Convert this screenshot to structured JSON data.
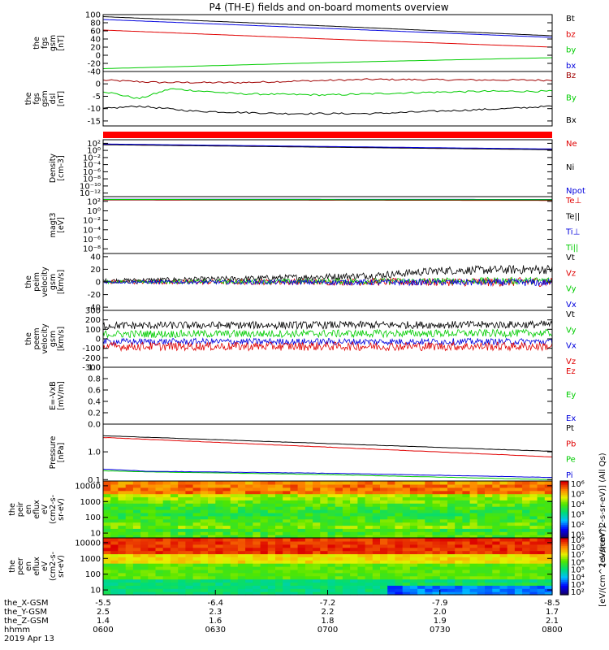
{
  "title": "P4 (TH-E) fields and on-board moments overview",
  "colors": {
    "black": "#000000",
    "red": "#e00000",
    "green": "#00cc00",
    "blue": "#0000dd"
  },
  "chart_data": [
    {
      "type": "line",
      "ylabel": [
        "the",
        "fgs",
        "gsm",
        "[nT]"
      ],
      "ylim": [
        -40,
        100
      ],
      "yticks": [
        {
          "v": 100,
          "label": "100"
        },
        {
          "v": 80,
          "label": "80"
        },
        {
          "v": 60,
          "label": "60"
        },
        {
          "v": 40,
          "label": "40"
        },
        {
          "v": 20,
          "label": "20"
        },
        {
          "v": 0,
          "label": "0"
        },
        {
          "v": -20,
          "label": "-20"
        },
        {
          "v": -40,
          "label": "-40"
        }
      ],
      "series": [
        {
          "name": "Bt",
          "color": "#000000",
          "x": [
            0,
            0.5,
            1
          ],
          "y": [
            95,
            72,
            48
          ]
        },
        {
          "name": "bz",
          "color": "#e00000",
          "x": [
            0,
            0.5,
            1
          ],
          "y": [
            62,
            40,
            20
          ]
        },
        {
          "name": "by",
          "color": "#00cc00",
          "x": [
            0,
            0.5,
            1
          ],
          "y": [
            -33,
            -18,
            -6
          ]
        },
        {
          "name": "bx",
          "color": "#0000dd",
          "x": [
            0,
            0.5,
            1
          ],
          "y": [
            88,
            66,
            44
          ]
        }
      ]
    },
    {
      "type": "line",
      "ylabel": [
        "the",
        "fgs",
        "gsm",
        "dsl",
        "[nT]"
      ],
      "ylim": [
        -17,
        5
      ],
      "yticks": [
        {
          "v": 0,
          "label": "0"
        },
        {
          "v": -5,
          "label": "-5"
        },
        {
          "v": -10,
          "label": "-10"
        },
        {
          "v": -15,
          "label": "-15"
        }
      ],
      "series": [
        {
          "name": "Bz",
          "color": "#a00000",
          "x": [
            0,
            0.12,
            0.3,
            0.45,
            0.6,
            0.8,
            1
          ],
          "y": [
            1.5,
            0.6,
            0.5,
            1.2,
            1.8,
            1.6,
            1.5
          ]
        },
        {
          "name": "By",
          "color": "#00cc00",
          "x": [
            0,
            0.08,
            0.15,
            0.3,
            0.5,
            0.7,
            0.85,
            1
          ],
          "y": [
            -3,
            -6,
            -2,
            -4,
            -4.5,
            -3.5,
            -3,
            -3
          ]
        },
        {
          "name": "Bx",
          "color": "#000000",
          "x": [
            0,
            0.08,
            0.2,
            0.4,
            0.6,
            0.75,
            0.9,
            1
          ],
          "y": [
            -10,
            -9,
            -11,
            -12,
            -12,
            -11,
            -10,
            -9
          ]
        }
      ]
    },
    {
      "type": "bar",
      "ylabel": [],
      "series": [
        {
          "name": "mode",
          "color": "#ff0000"
        }
      ]
    },
    {
      "type": "line",
      "ylabel": [
        "Density",
        "[cm-3]"
      ],
      "ylim": [
        -13,
        3
      ],
      "yscale": "log",
      "yticks": [
        {
          "v": 2,
          "label": "10²"
        },
        {
          "v": 0,
          "label": "10⁰"
        },
        {
          "v": -2,
          "label": "10⁻²"
        },
        {
          "v": -4,
          "label": "10⁻⁴"
        },
        {
          "v": -6,
          "label": "10⁻⁶"
        },
        {
          "v": -8,
          "label": "10⁻⁸"
        },
        {
          "v": -10,
          "label": "10⁻¹⁰"
        },
        {
          "v": -12,
          "label": "10⁻¹²"
        }
      ],
      "series": [
        {
          "name": "Ne",
          "color": "#e00000",
          "x": [
            0,
            1
          ],
          "y": [
            1.7,
            0.3
          ]
        },
        {
          "name": "Ni",
          "color": "#000000",
          "x": [
            0,
            1
          ],
          "y": [
            1.6,
            0.2
          ]
        },
        {
          "name": "Npot",
          "color": "#0000dd",
          "x": [
            0,
            1
          ],
          "y": [
            1.8,
            0.4
          ]
        }
      ]
    },
    {
      "type": "line",
      "ylabel": [
        "magt3",
        "[eV]"
      ],
      "ylim": [
        -9,
        3
      ],
      "yscale": "log",
      "yticks": [
        {
          "v": 2,
          "label": "10²"
        },
        {
          "v": 0,
          "label": "10⁰"
        },
        {
          "v": -2,
          "label": "10⁻²"
        },
        {
          "v": -4,
          "label": "10⁻⁴"
        },
        {
          "v": -6,
          "label": "10⁻⁶"
        },
        {
          "v": -8,
          "label": "10⁻⁸"
        }
      ],
      "series": [
        {
          "name": "Te⊥",
          "color": "#e00000",
          "x": [
            0,
            1
          ],
          "y": [
            2.3,
            2.2
          ]
        },
        {
          "name": "Te||",
          "color": "#000000",
          "x": [
            0,
            1
          ],
          "y": [
            2.35,
            2.3
          ]
        },
        {
          "name": "Ti⊥",
          "color": "#0000dd",
          "x": [
            0,
            1
          ],
          "y": [
            2.45,
            2.4
          ]
        },
        {
          "name": "Ti||",
          "color": "#00cc00",
          "x": [
            0,
            1
          ],
          "y": [
            2.4,
            2.35
          ]
        }
      ]
    },
    {
      "type": "line",
      "ylabel": [
        "the",
        "peim",
        "velocity",
        "gsm",
        "[km/s]"
      ],
      "ylim": [
        -45,
        45
      ],
      "yticks": [
        {
          "v": 40,
          "label": "40"
        },
        {
          "v": 20,
          "label": "20"
        },
        {
          "v": 0,
          "label": "0"
        },
        {
          "v": -20,
          "label": "-20"
        },
        {
          "v": -40,
          "label": "-40"
        }
      ],
      "series": [
        {
          "name": "Vt",
          "color": "#000000",
          "x": [
            0,
            0.3,
            0.6,
            0.75,
            1
          ],
          "y": [
            2,
            5,
            10,
            18,
            20
          ],
          "noise": 5
        },
        {
          "name": "Vz",
          "color": "#e00000",
          "x": [
            0,
            1
          ],
          "y": [
            0,
            0
          ],
          "noise": 5
        },
        {
          "name": "Vy",
          "color": "#00cc00",
          "x": [
            0,
            1
          ],
          "y": [
            0,
            2
          ],
          "noise": 4
        },
        {
          "name": "Vx",
          "color": "#0000dd",
          "x": [
            0,
            1
          ],
          "y": [
            0,
            -1
          ],
          "noise": 4
        }
      ]
    },
    {
      "type": "line",
      "ylabel": [
        "the",
        "peem",
        "velocity",
        "gsm",
        "[km/s]"
      ],
      "ylim": [
        -300,
        300
      ],
      "yticks": [
        {
          "v": 300,
          "label": "300"
        },
        {
          "v": 200,
          "label": "200"
        },
        {
          "v": 100,
          "label": "100"
        },
        {
          "v": 0,
          "label": "0"
        },
        {
          "v": -100,
          "label": "-100"
        },
        {
          "v": -200,
          "label": "-200"
        },
        {
          "v": -300,
          "label": "-300"
        }
      ],
      "series": [
        {
          "name": "Vt",
          "color": "#000000",
          "x": [
            0,
            1
          ],
          "y": [
            140,
            150
          ],
          "noise": 40
        },
        {
          "name": "Vy",
          "color": "#00cc00",
          "x": [
            0,
            1
          ],
          "y": [
            50,
            60
          ],
          "noise": 40
        },
        {
          "name": "Vx",
          "color": "#0000dd",
          "x": [
            0,
            1
          ],
          "y": [
            -30,
            -30
          ],
          "noise": 35
        },
        {
          "name": "Vz",
          "color": "#e00000",
          "x": [
            0,
            1
          ],
          "y": [
            -80,
            -80
          ],
          "noise": 45
        }
      ]
    },
    {
      "type": "line",
      "ylabel": [
        "E=-VxB",
        "[mV/m]"
      ],
      "ylim": [
        0,
        1
      ],
      "yticks": [
        {
          "v": 1.0,
          "label": "1.0"
        },
        {
          "v": 0.8,
          "label": "0.8"
        },
        {
          "v": 0.6,
          "label": "0.6"
        },
        {
          "v": 0.4,
          "label": "0.4"
        },
        {
          "v": 0.2,
          "label": "0.2"
        },
        {
          "v": 0.0,
          "label": "0.0"
        }
      ],
      "series": [
        {
          "name": "Ez",
          "color": "#e00000",
          "x": [],
          "y": []
        },
        {
          "name": "Ey",
          "color": "#00cc00",
          "x": [],
          "y": []
        },
        {
          "name": "Ex",
          "color": "#0000dd",
          "x": [],
          "y": []
        }
      ]
    },
    {
      "type": "line",
      "ylabel": [
        "Pressure",
        "[nPa]"
      ],
      "ylim": [
        -1.05,
        1
      ],
      "yscale": "log",
      "yticks": [
        {
          "v": 0,
          "label": "1.0"
        },
        {
          "v": -1,
          "label": "0.1"
        }
      ],
      "series": [
        {
          "name": "Pt",
          "color": "#000000",
          "x": [
            0,
            0.5,
            1
          ],
          "y": [
            0.58,
            0.3,
            0.02
          ]
        },
        {
          "name": "Pb",
          "color": "#e00000",
          "x": [
            0,
            0.5,
            1
          ],
          "y": [
            0.52,
            0.17,
            -0.18
          ]
        },
        {
          "name": "Pe",
          "color": "#00cc00",
          "x": [
            0,
            0.1,
            0.5,
            1
          ],
          "y": [
            -0.68,
            -0.72,
            -0.82,
            -1.0
          ]
        },
        {
          "name": "Pi",
          "color": "#0000dd",
          "x": [
            0,
            0.1,
            0.5,
            1
          ],
          "y": [
            -0.62,
            -0.7,
            -0.77,
            -0.92
          ]
        }
      ]
    },
    {
      "type": "heatmap",
      "ylabel": [
        "the",
        "peir",
        "en",
        "eflux",
        "eV",
        "(cm2-s-",
        "sr-eV)"
      ],
      "ylim": [
        5,
        20000
      ],
      "yscale": "log",
      "yticks": [
        {
          "v": 10000,
          "label": "10000"
        },
        {
          "v": 1000,
          "label": "1000"
        },
        {
          "v": 100,
          "label": "100"
        },
        {
          "v": 10,
          "label": "10"
        }
      ],
      "colorbar": {
        "label": "[eV/(cm^2-s-sr-eV)] (All Qs)",
        "ticks": [
          {
            "v": 6,
            "label": "10⁶"
          },
          {
            "v": 5,
            "label": "10⁵"
          },
          {
            "v": 4,
            "label": "10⁴"
          },
          {
            "v": 3,
            "label": "10³"
          },
          {
            "v": 2,
            "label": "10²"
          },
          {
            "v": 1,
            "label": "10¹"
          }
        ]
      }
    },
    {
      "type": "heatmap",
      "ylabel": [
        "the",
        "peer",
        "en",
        "eflux",
        "eV",
        "(cm2-s-",
        "sr-eV)"
      ],
      "ylim": [
        5,
        20000
      ],
      "yscale": "log",
      "yticks": [
        {
          "v": 10000,
          "label": "10000"
        },
        {
          "v": 1000,
          "label": "1000"
        },
        {
          "v": 100,
          "label": "100"
        },
        {
          "v": 10,
          "label": "10"
        }
      ],
      "colorbar": {
        "label": "[eV/(cm^2-s-sr-eV)]",
        "ticks": [
          {
            "v": 9,
            "label": "10⁹"
          },
          {
            "v": 8,
            "label": "10⁸"
          },
          {
            "v": 7,
            "label": "10⁷"
          },
          {
            "v": 6,
            "label": "10⁶"
          },
          {
            "v": 5,
            "label": "10⁵"
          },
          {
            "v": 4,
            "label": "10⁴"
          },
          {
            "v": 3,
            "label": "10³"
          },
          {
            "v": 2,
            "label": "10²"
          }
        ]
      }
    }
  ],
  "xaxis": {
    "rows": [
      {
        "label": "the_X-GSM",
        "values": [
          "-5.5",
          "-6.4",
          "-7.2",
          "-7.9",
          "-8.5"
        ]
      },
      {
        "label": "the_Y-GSM",
        "values": [
          "2.5",
          "2.3",
          "2.2",
          "2.0",
          "1.7"
        ]
      },
      {
        "label": "the_Z-GSM",
        "values": [
          "1.4",
          "1.6",
          "1.8",
          "1.9",
          "2.1"
        ]
      },
      {
        "label": "hhmm",
        "values": [
          "0600",
          "0630",
          "0700",
          "0730",
          "0800"
        ]
      }
    ],
    "date": "2019 Apr 13"
  }
}
